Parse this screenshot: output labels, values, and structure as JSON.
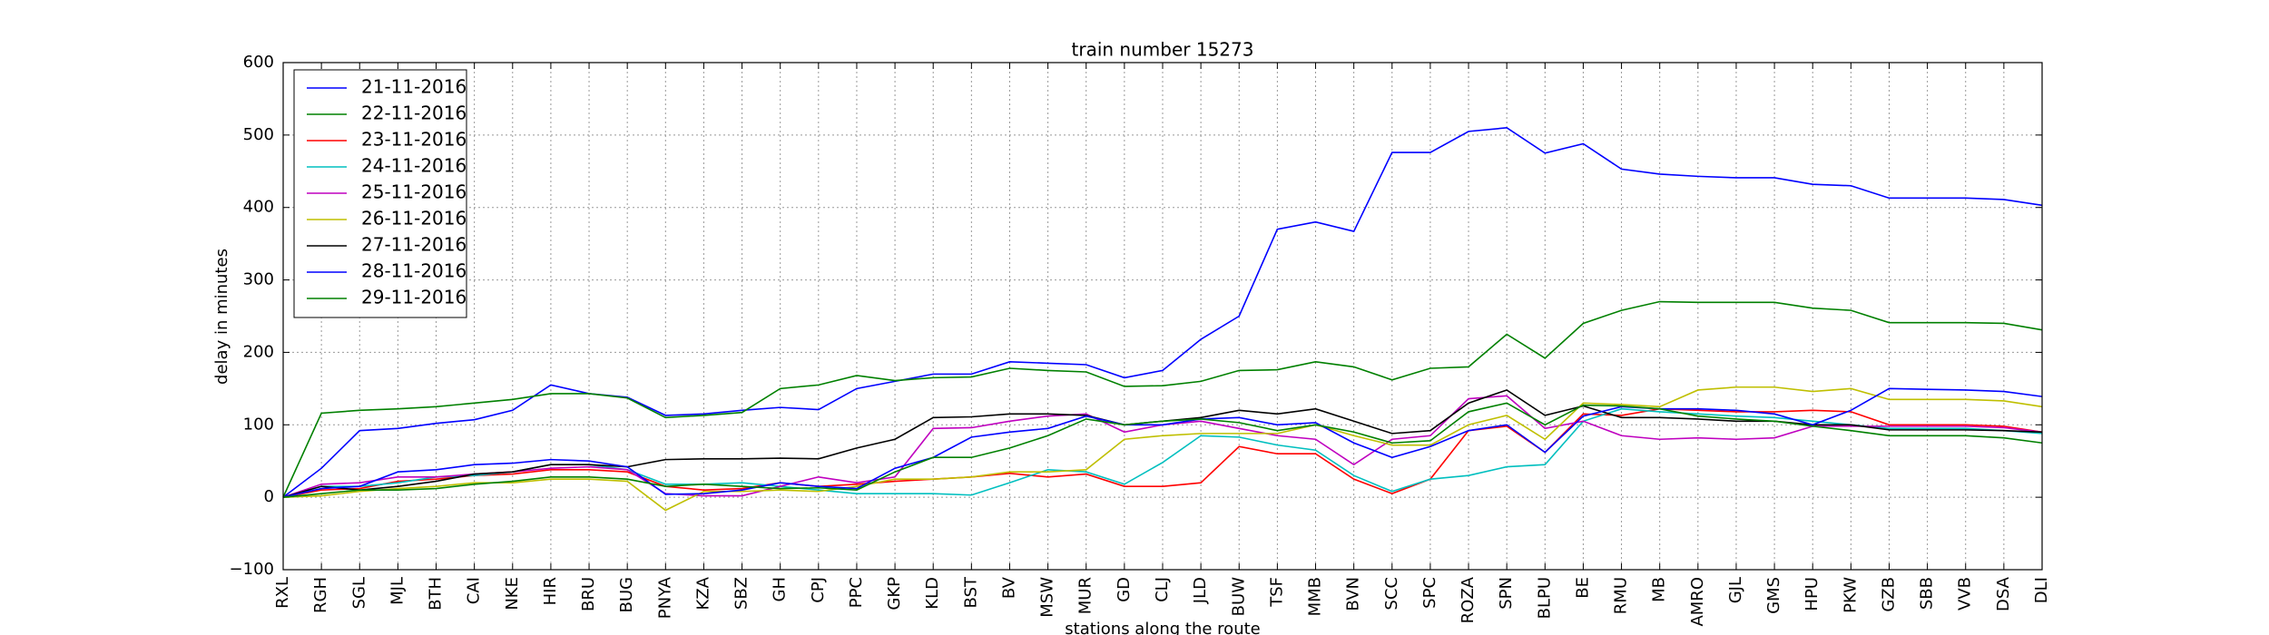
{
  "chart_data": {
    "type": "line",
    "title": "train number 15273",
    "x_label": "stations along the route",
    "y_label": "delay in minutes",
    "categories": [
      "RXL",
      "RGH",
      "SGL",
      "MJL",
      "BTH",
      "CAI",
      "NKE",
      "HIR",
      "BRU",
      "BUG",
      "PNYA",
      "KZA",
      "SBZ",
      "GH",
      "CPJ",
      "PPC",
      "GKP",
      "KLD",
      "BST",
      "BV",
      "MSW",
      "MUR",
      "GD",
      "CLJ",
      "JLD",
      "BUW",
      "TSF",
      "MMB",
      "BVN",
      "SCC",
      "SPC",
      "ROZA",
      "SPN",
      "BLPU",
      "BE",
      "RMU",
      "MB",
      "AMRO",
      "GJL",
      "GMS",
      "HPU",
      "PKW",
      "GZB",
      "SBB",
      "VVB",
      "DSA",
      "DLI"
    ],
    "ylim": [
      -100,
      600
    ],
    "yticks": [
      {
        "value": -100,
        "label": "−100"
      },
      0,
      100,
      200,
      300,
      400,
      500,
      600
    ],
    "grid": true,
    "legend": "upper left",
    "series": [
      {
        "name": "21-11-2016",
        "color": "#0000ff",
        "values": [
          0,
          40,
          92,
          95,
          102,
          107,
          120,
          155,
          143,
          138,
          113,
          115,
          120,
          124,
          121,
          150,
          160,
          170,
          170,
          187,
          185,
          183,
          165,
          175,
          218,
          250,
          370,
          380,
          367,
          476,
          476,
          505,
          510,
          475,
          488,
          453,
          446,
          443,
          441,
          441,
          432,
          430,
          413,
          413,
          413,
          411,
          403
        ]
      },
      {
        "name": "22-11-2016",
        "color": "#008000",
        "values": [
          0,
          116,
          120,
          122,
          125,
          130,
          135,
          143,
          143,
          137,
          110,
          113,
          117,
          150,
          155,
          168,
          161,
          165,
          166,
          178,
          175,
          173,
          153,
          154,
          160,
          175,
          176,
          187,
          180,
          162,
          178,
          180,
          225,
          192,
          240,
          258,
          270,
          269,
          269,
          269,
          261,
          258,
          241,
          241,
          241,
          240,
          231
        ]
      },
      {
        "name": "23-11-2016",
        "color": "#ff0000",
        "values": [
          0,
          10,
          12,
          22,
          25,
          30,
          32,
          38,
          38,
          35,
          15,
          10,
          12,
          20,
          15,
          18,
          22,
          25,
          28,
          33,
          28,
          32,
          15,
          15,
          20,
          70,
          60,
          60,
          25,
          5,
          25,
          92,
          98,
          62,
          115,
          113,
          122,
          120,
          118,
          118,
          120,
          118,
          100,
          100,
          100,
          98,
          90
        ]
      },
      {
        "name": "24-11-2016",
        "color": "#00bfbf",
        "values": [
          0,
          15,
          15,
          20,
          28,
          30,
          35,
          45,
          45,
          38,
          18,
          18,
          20,
          15,
          10,
          5,
          5,
          5,
          3,
          20,
          38,
          35,
          18,
          48,
          85,
          83,
          72,
          65,
          30,
          8,
          25,
          30,
          42,
          45,
          105,
          122,
          118,
          115,
          112,
          110,
          105,
          100,
          95,
          95,
          95,
          92,
          88
        ]
      },
      {
        "name": "25-11-2016",
        "color": "#bf00bf",
        "values": [
          0,
          18,
          20,
          28,
          28,
          32,
          35,
          40,
          42,
          38,
          5,
          2,
          2,
          15,
          28,
          20,
          28,
          95,
          96,
          105,
          112,
          115,
          90,
          100,
          105,
          95,
          85,
          80,
          45,
          80,
          85,
          136,
          140,
          95,
          105,
          85,
          80,
          82,
          80,
          82,
          98,
          98,
          98,
          98,
          98,
          96,
          90
        ]
      },
      {
        "name": "26-11-2016",
        "color": "#bfbf00",
        "values": [
          0,
          2,
          8,
          12,
          15,
          20,
          20,
          25,
          25,
          22,
          -18,
          8,
          8,
          10,
          8,
          15,
          25,
          25,
          28,
          35,
          35,
          38,
          80,
          85,
          88,
          88,
          88,
          100,
          85,
          72,
          72,
          100,
          113,
          80,
          130,
          128,
          125,
          148,
          152,
          152,
          146,
          150,
          135,
          135,
          135,
          133,
          125
        ]
      },
      {
        "name": "27-11-2016",
        "color": "#000000",
        "values": [
          0,
          15,
          10,
          15,
          22,
          32,
          35,
          45,
          45,
          42,
          52,
          53,
          53,
          54,
          53,
          68,
          80,
          110,
          111,
          115,
          115,
          113,
          100,
          105,
          110,
          120,
          115,
          122,
          105,
          88,
          92,
          130,
          148,
          113,
          126,
          110,
          110,
          108,
          105,
          105,
          100,
          100,
          93,
          93,
          93,
          92,
          90
        ]
      },
      {
        "name": "28-11-2016",
        "color": "#0000ff",
        "values": [
          0,
          12,
          15,
          35,
          38,
          45,
          47,
          52,
          50,
          42,
          4,
          5,
          10,
          20,
          15,
          12,
          40,
          55,
          83,
          90,
          95,
          112,
          100,
          100,
          108,
          110,
          100,
          103,
          75,
          55,
          70,
          92,
          100,
          62,
          112,
          125,
          122,
          122,
          120,
          115,
          100,
          120,
          150,
          149,
          148,
          146,
          139
        ]
      },
      {
        "name": "29-11-2016",
        "color": "#008000",
        "values": [
          0,
          5,
          10,
          10,
          12,
          18,
          22,
          28,
          28,
          25,
          15,
          18,
          15,
          12,
          13,
          10,
          35,
          55,
          55,
          68,
          85,
          108,
          100,
          105,
          108,
          103,
          92,
          100,
          90,
          75,
          78,
          118,
          130,
          100,
          127,
          126,
          122,
          112,
          108,
          105,
          98,
          92,
          85,
          85,
          85,
          82,
          75
        ]
      }
    ]
  }
}
